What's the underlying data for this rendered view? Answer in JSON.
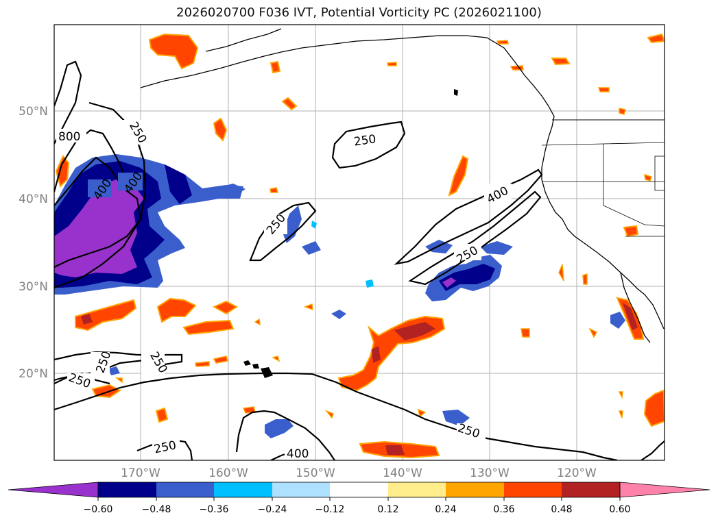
{
  "title": "2026020700 F036 IVT, Potential Vorticity PC (2026021100)",
  "axes": {
    "lat_ticks": [
      "50°N",
      "40°N",
      "30°N",
      "20°N"
    ],
    "lon_ticks": [
      "170°W",
      "160°W",
      "150°W",
      "140°W",
      "130°W",
      "120°W"
    ]
  },
  "ivt_contours": {
    "labels": [
      "250",
      "250",
      "250",
      "250",
      "250",
      "250",
      "250",
      "250",
      "250",
      "400",
      "400",
      "400",
      "400",
      "800"
    ]
  },
  "colorbar": {
    "tick_labels": [
      "−0.60",
      "−0.48",
      "−0.36",
      "−0.24",
      "−0.12",
      "0.12",
      "0.24",
      "0.36",
      "0.48",
      "0.60"
    ],
    "colors": [
      "#9932CC",
      "#00008B",
      "#3A5FCD",
      "#00BFFF",
      "#ADE1FF",
      "#FFFFFF",
      "#FFEC8B",
      "#FFA500",
      "#FF4500",
      "#B22222",
      "#FF82AB"
    ]
  }
}
